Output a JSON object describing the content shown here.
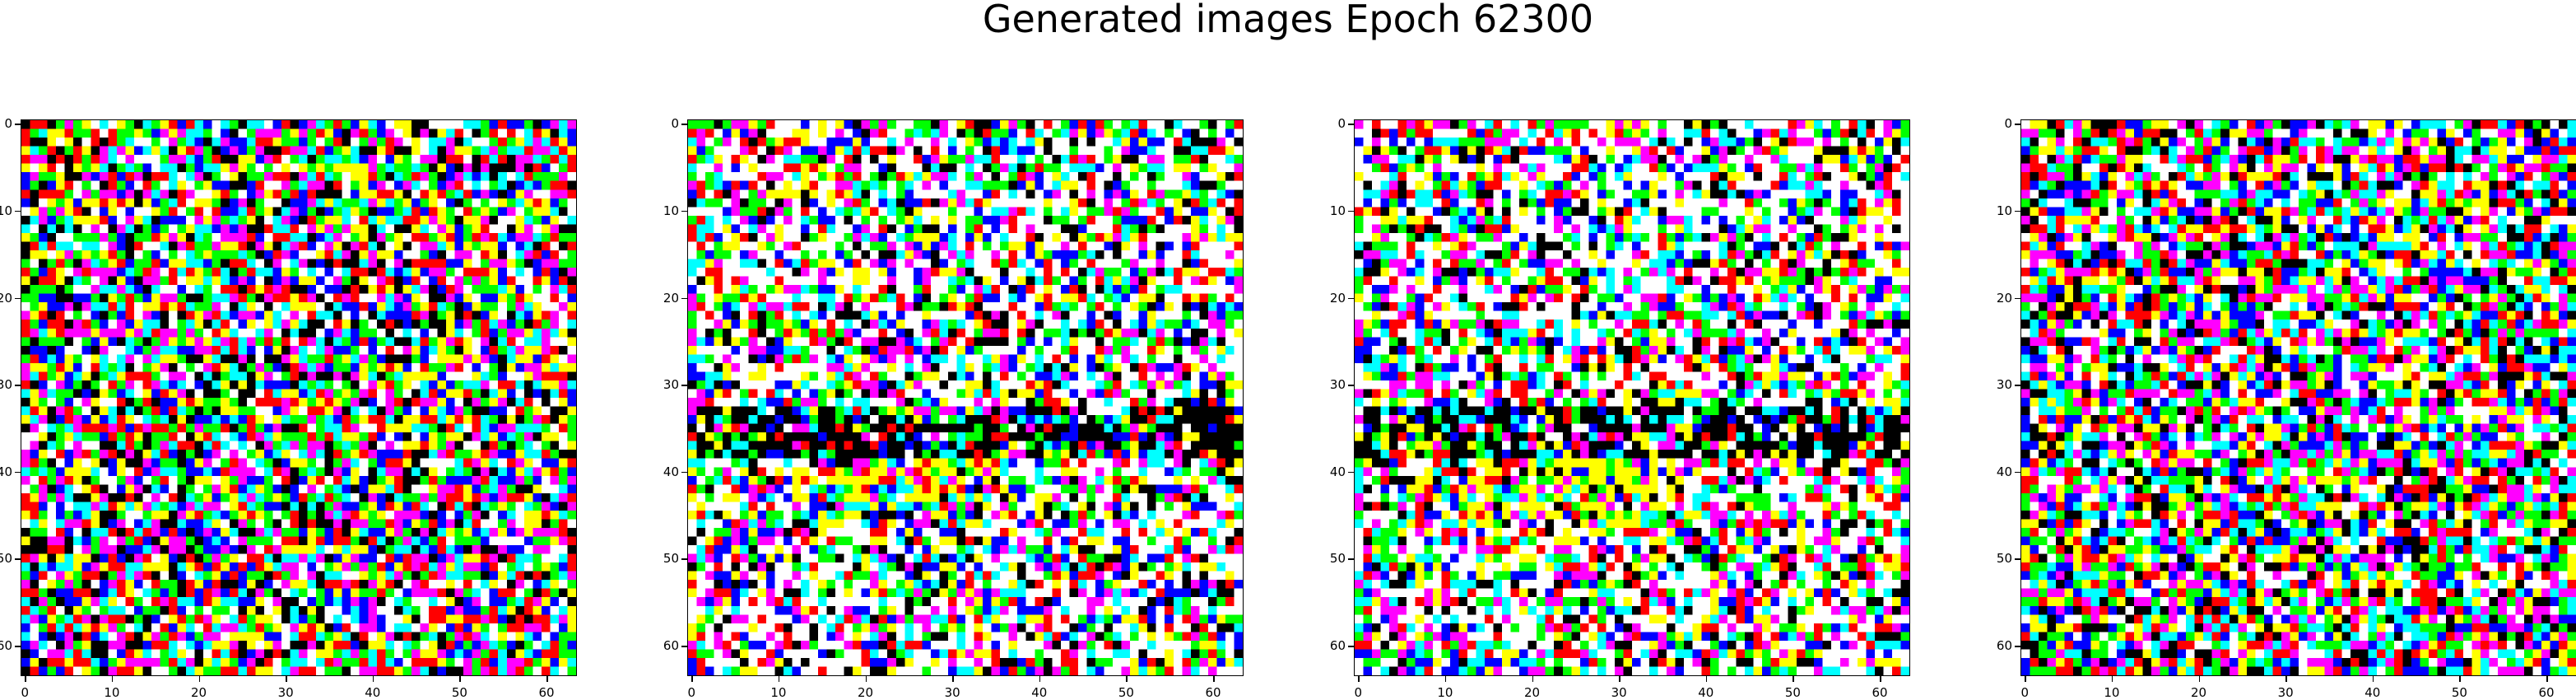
{
  "figure": {
    "title": "Generated images Epoch 62300"
  },
  "images": {
    "grid_size": 64,
    "count": 4,
    "palette": [
      "#ffffff",
      "#000000",
      "#ff0000",
      "#00ff00",
      "#0000ff",
      "#ffff00",
      "#ff00ff",
      "#00ffff"
    ]
  },
  "axes": {
    "x_ticks": [
      "0",
      "10",
      "20",
      "30",
      "40",
      "50",
      "60"
    ],
    "y_ticks": [
      "0",
      "10",
      "20",
      "30",
      "40",
      "50",
      "60"
    ]
  }
}
